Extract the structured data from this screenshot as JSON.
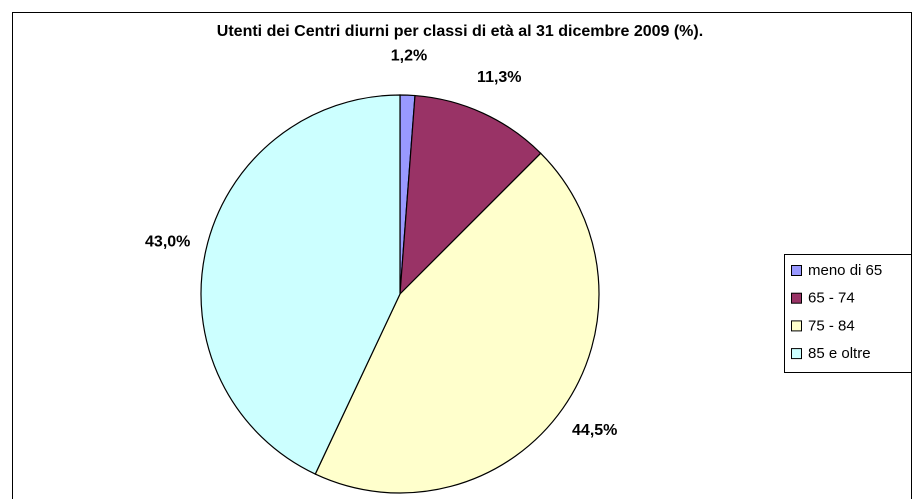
{
  "chart_data": {
    "type": "pie",
    "title": "Utenti dei Centri diurni per classi di età al 31 dicembre 2009 (%).",
    "categories": [
      "meno di 65",
      "65 - 74",
      "75 - 84",
      "85 e oltre"
    ],
    "values": [
      1.2,
      11.3,
      44.5,
      43.0
    ],
    "value_labels": [
      "1,2%",
      "11,3%",
      "44,5%",
      "43,0%"
    ],
    "colors": [
      "#9999ff",
      "#993366",
      "#ffffcc",
      "#ccffff"
    ],
    "legend": "right"
  }
}
